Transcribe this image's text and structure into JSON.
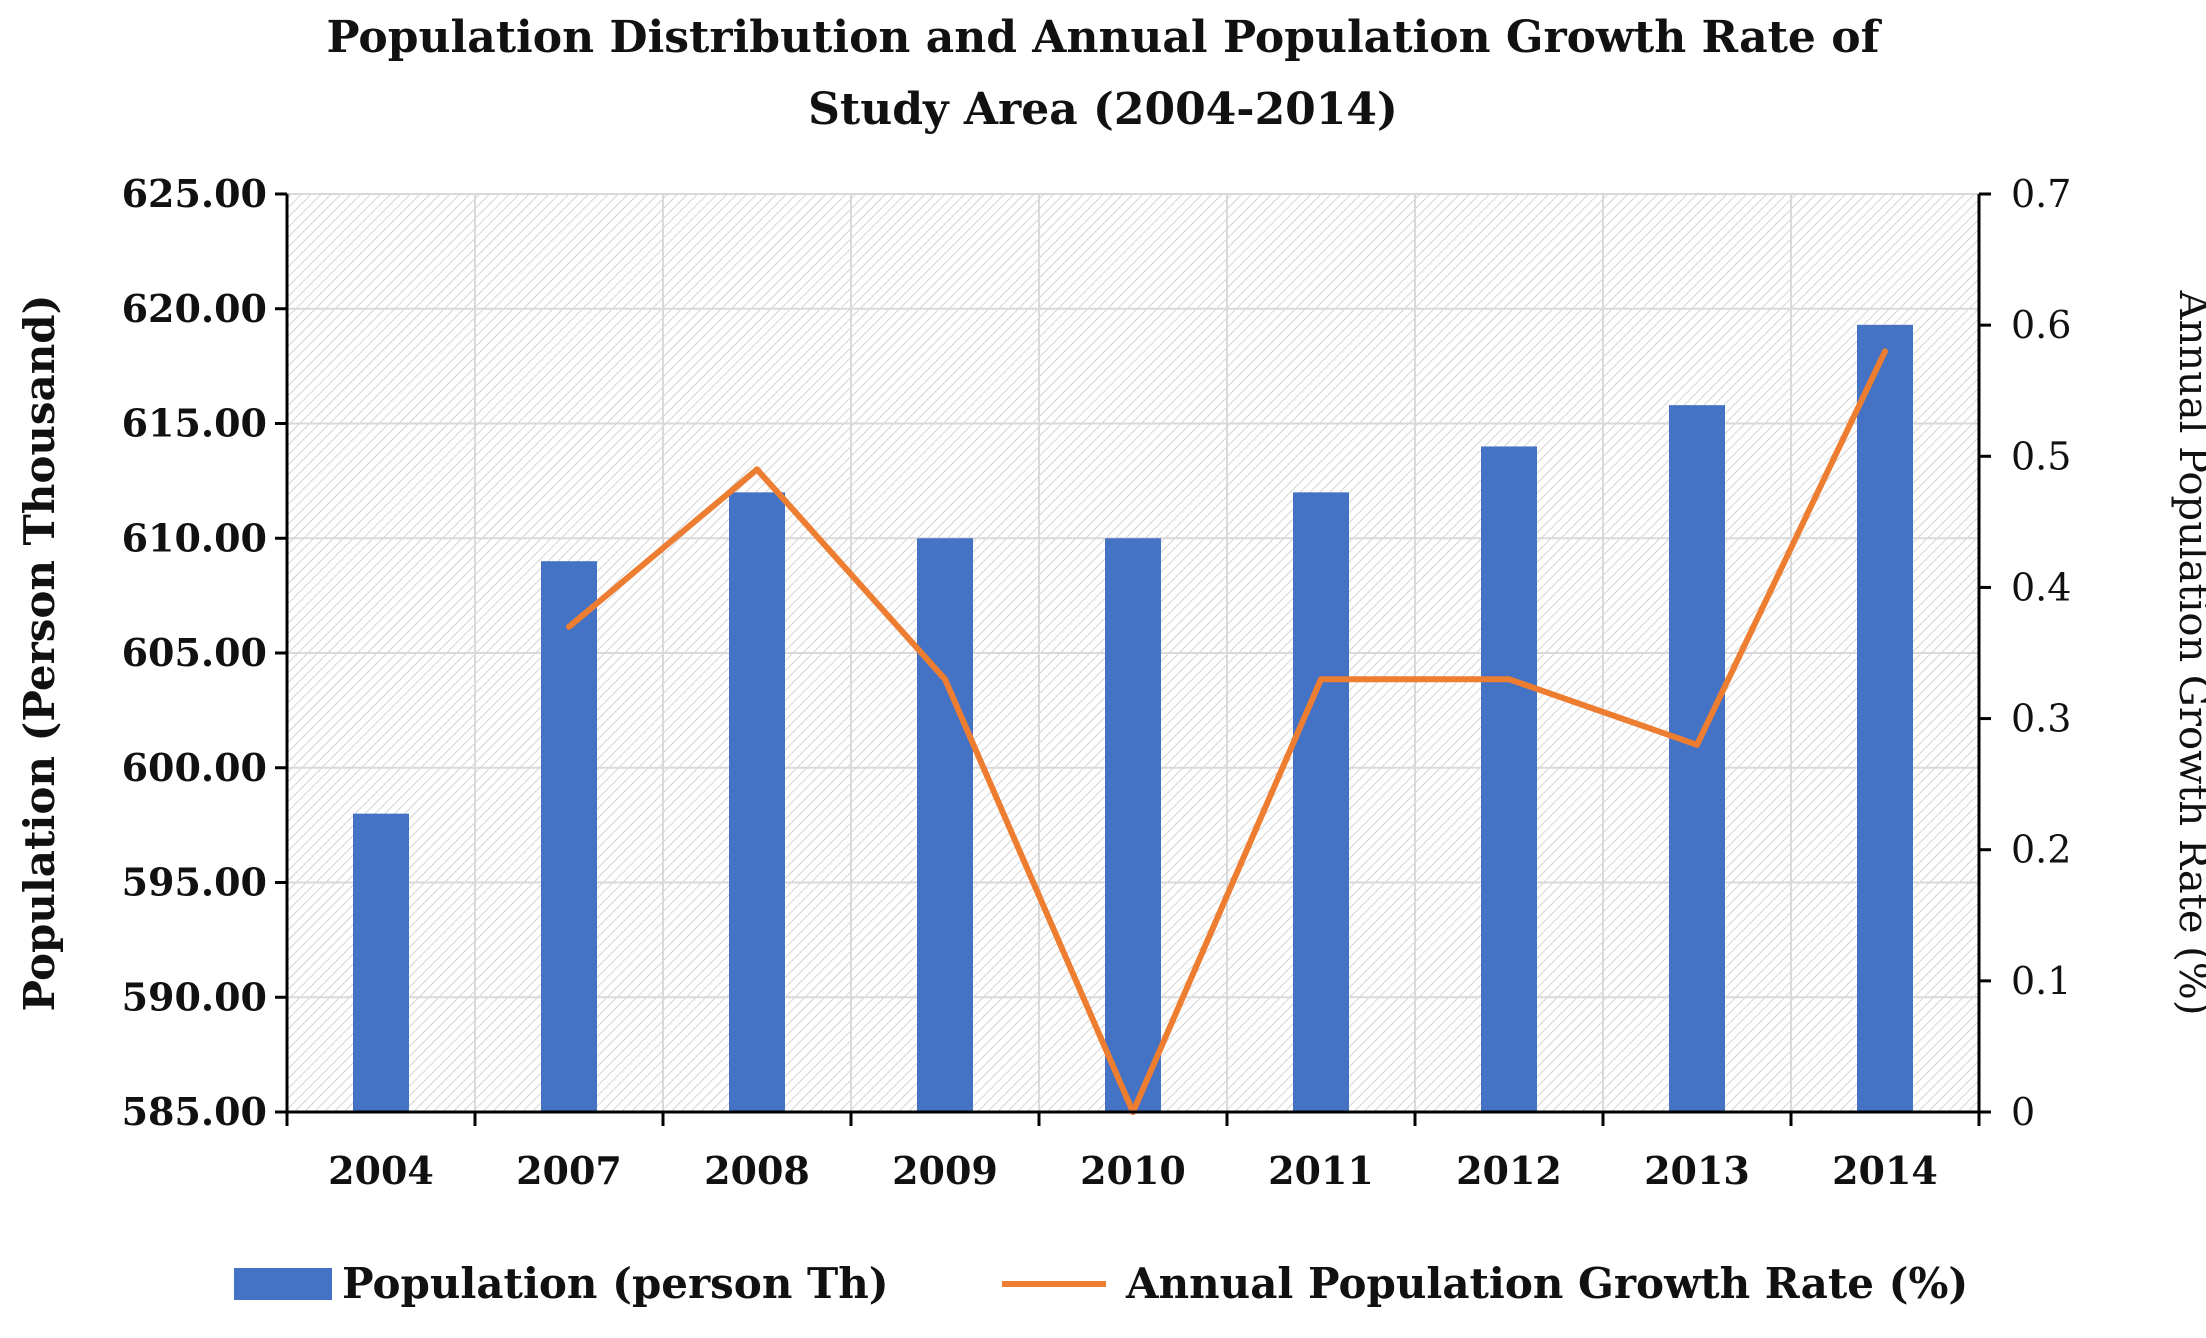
{
  "chart_data": {
    "type": "bar",
    "title": "Population Distribution and Annual Population Growth Rate of",
    "subtitle": "Study Area (2004-2014)",
    "categories": [
      "2004",
      "2007",
      "2008",
      "2009",
      "2010",
      "2011",
      "2012",
      "2013",
      "2014"
    ],
    "ylabel": "Population (Person Thousand)",
    "y2label": "Annual Population Growth Rate (%)",
    "ylim": [
      585,
      625
    ],
    "y2lim": [
      0,
      0.7
    ],
    "yticks": [
      "585.00",
      "590.00",
      "595.00",
      "600.00",
      "605.00",
      "610.00",
      "615.00",
      "620.00",
      "625.00"
    ],
    "y2ticks": [
      "0",
      "0.1",
      "0.2",
      "0.3",
      "0.4",
      "0.5",
      "0.6",
      "0.7"
    ],
    "grid": true,
    "legend_position": "bottom",
    "series": [
      {
        "name": "Population (person Th)",
        "type": "bar",
        "axis": "left",
        "color": "#4472C4",
        "values": [
          598,
          609,
          612,
          610,
          610,
          612,
          614,
          615.8,
          619.3
        ]
      },
      {
        "name": "Annual Population Growth Rate (%)",
        "type": "line",
        "axis": "right",
        "color": "#ED7D31",
        "values": [
          null,
          0.37,
          0.49,
          0.33,
          0,
          0.33,
          0.33,
          0.28,
          0.58
        ]
      }
    ]
  }
}
